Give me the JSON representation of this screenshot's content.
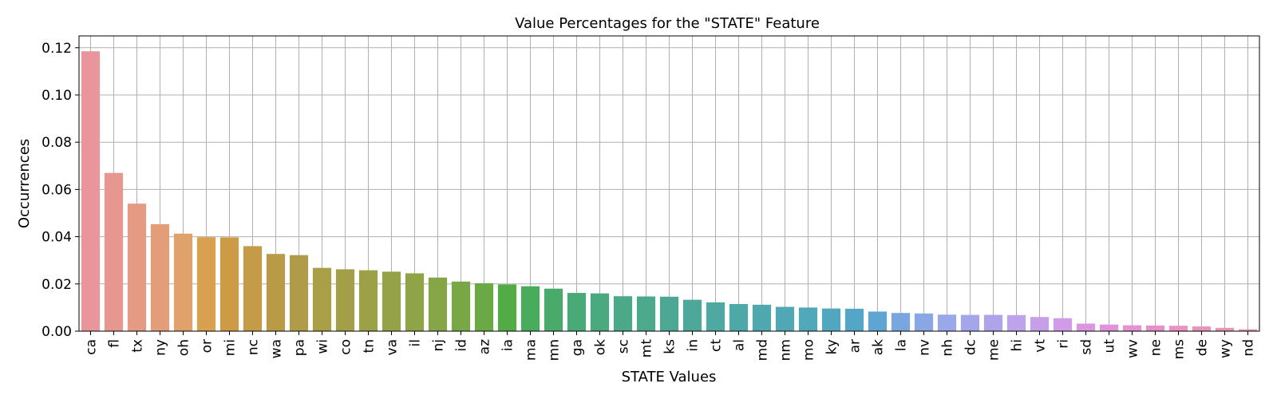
{
  "chart_data": {
    "type": "bar",
    "title": "Value Percentages for the \"STATE\" Feature",
    "xlabel": "STATE Values",
    "ylabel": "Occurrences",
    "ylim": [
      0,
      0.125
    ],
    "yticks": [
      "0.00",
      "0.02",
      "0.04",
      "0.06",
      "0.08",
      "0.10",
      "0.12"
    ],
    "grid": true,
    "categories": [
      "ca",
      "fl",
      "tx",
      "ny",
      "oh",
      "or",
      "mi",
      "nc",
      "wa",
      "pa",
      "wi",
      "co",
      "tn",
      "va",
      "il",
      "nj",
      "id",
      "az",
      "ia",
      "ma",
      "mn",
      "ga",
      "ok",
      "sc",
      "mt",
      "ks",
      "in",
      "ct",
      "al",
      "md",
      "nm",
      "mo",
      "ky",
      "ar",
      "ak",
      "la",
      "nv",
      "nh",
      "dc",
      "me",
      "hi",
      "vt",
      "ri",
      "sd",
      "ut",
      "wv",
      "ne",
      "ms",
      "de",
      "wy",
      "nd"
    ],
    "values": [
      0.1185,
      0.067,
      0.054,
      0.0453,
      0.0413,
      0.0398,
      0.0397,
      0.036,
      0.0327,
      0.0322,
      0.0268,
      0.0262,
      0.0258,
      0.0252,
      0.0245,
      0.0227,
      0.021,
      0.0203,
      0.0198,
      0.019,
      0.018,
      0.0162,
      0.016,
      0.0148,
      0.0147,
      0.0146,
      0.0133,
      0.0122,
      0.0115,
      0.0112,
      0.0103,
      0.01,
      0.0096,
      0.0095,
      0.0083,
      0.0077,
      0.0075,
      0.007,
      0.0069,
      0.0069,
      0.0068,
      0.006,
      0.0055,
      0.0032,
      0.0028,
      0.0025,
      0.0024,
      0.0023,
      0.002,
      0.0014,
      0.0008
    ],
    "colors": [
      "#e8959c",
      "#e69790",
      "#e59a84",
      "#e39d78",
      "#e0a16b",
      "#d9a050",
      "#cd9a45",
      "#c49b46",
      "#b99b47",
      "#b09c48",
      "#a89f47",
      "#a39f48",
      "#9ca147",
      "#96a247",
      "#8fa447",
      "#86a546",
      "#7aa746",
      "#6aa946",
      "#52ab45",
      "#49ab5c",
      "#49aa6b",
      "#4aaa77",
      "#4aa97f",
      "#4ca987",
      "#4ca98c",
      "#4da893",
      "#4da899",
      "#4ea9a2",
      "#4ea8a8",
      "#4fa8ad",
      "#4fa8b3",
      "#51a8b8",
      "#52a7c0",
      "#54a6c8",
      "#5fa5d4",
      "#7aa6e0",
      "#8aa7e5",
      "#98a8e8",
      "#a3a7e9",
      "#afa4ea",
      "#bca3ea",
      "#c79fe8",
      "#d19be5",
      "#da97e0",
      "#e093db",
      "#e492d4",
      "#e791cc",
      "#e893c3",
      "#e794b9",
      "#e796b0",
      "#e897a5"
    ]
  }
}
